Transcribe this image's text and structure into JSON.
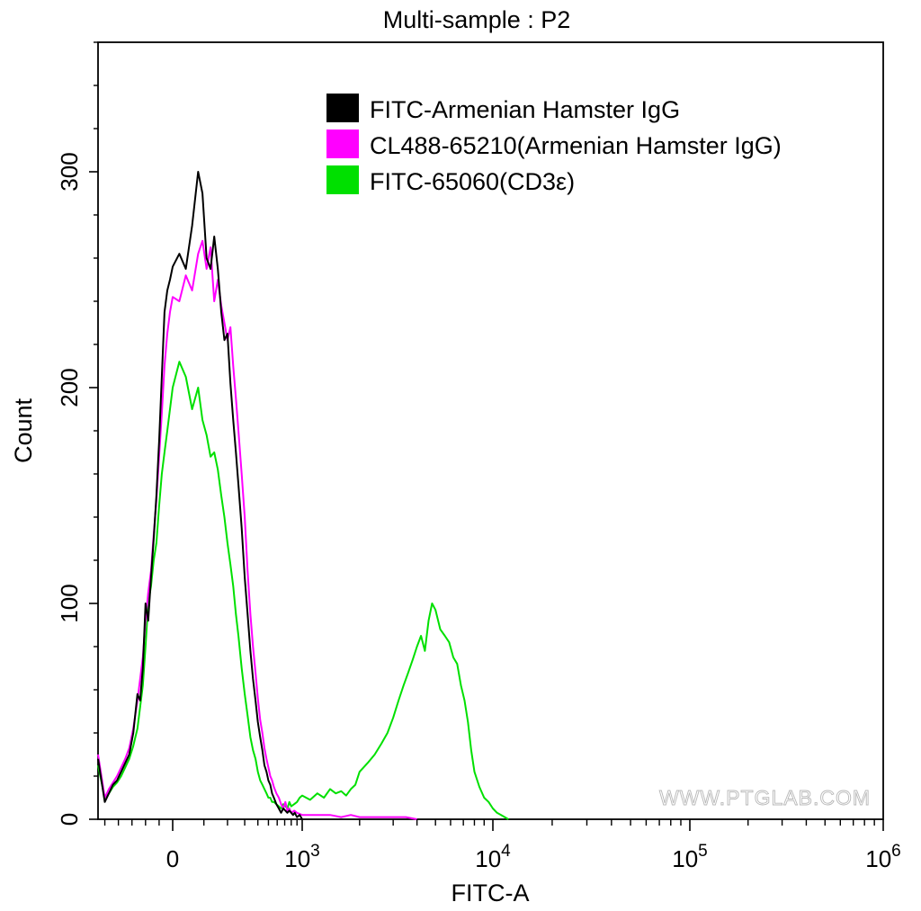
{
  "chart_data": {
    "type": "histogram",
    "title": "Multi-sample : P2",
    "xlabel": "FITC-A",
    "ylabel": "Count",
    "watermark": "WWW.PTGLAB.COM",
    "y_ticks": [
      "0",
      "100",
      "200",
      "300"
    ],
    "y_range": [
      0,
      360
    ],
    "x_ticks": [
      {
        "base": "0",
        "exp": "",
        "value": 0
      },
      {
        "base": "10",
        "exp": "3",
        "value": 1000
      },
      {
        "base": "10",
        "exp": "4",
        "value": 10000
      },
      {
        "base": "10",
        "exp": "5",
        "value": 100000
      },
      {
        "base": "10",
        "exp": "6",
        "value": 1000000
      }
    ],
    "x_scale": "biexponential",
    "legend_position": "top-right",
    "series": [
      {
        "name": "FITC-Armenian Hamster IgG",
        "color": "#000000",
        "points": [
          [
            -550,
            28
          ],
          [
            -500,
            8
          ],
          [
            -470,
            12
          ],
          [
            -440,
            16
          ],
          [
            -410,
            18
          ],
          [
            -380,
            22
          ],
          [
            -350,
            26
          ],
          [
            -320,
            30
          ],
          [
            -290,
            40
          ],
          [
            -260,
            58
          ],
          [
            -240,
            55
          ],
          [
            -220,
            70
          ],
          [
            -200,
            100
          ],
          [
            -180,
            92
          ],
          [
            -160,
            112
          ],
          [
            -140,
            130
          ],
          [
            -120,
            150
          ],
          [
            -100,
            175
          ],
          [
            -80,
            205
          ],
          [
            -60,
            235
          ],
          [
            -40,
            245
          ],
          [
            -20,
            250
          ],
          [
            0,
            256
          ],
          [
            20,
            262
          ],
          [
            40,
            255
          ],
          [
            60,
            275
          ],
          [
            80,
            300
          ],
          [
            95,
            290
          ],
          [
            110,
            260
          ],
          [
            125,
            255
          ],
          [
            140,
            270
          ],
          [
            155,
            255
          ],
          [
            170,
            235
          ],
          [
            185,
            222
          ],
          [
            200,
            225
          ],
          [
            215,
            202
          ],
          [
            230,
            185
          ],
          [
            245,
            170
          ],
          [
            260,
            155
          ],
          [
            280,
            135
          ],
          [
            300,
            112
          ],
          [
            320,
            95
          ],
          [
            340,
            78
          ],
          [
            360,
            65
          ],
          [
            380,
            55
          ],
          [
            400,
            45
          ],
          [
            420,
            38
          ],
          [
            440,
            32
          ],
          [
            460,
            25
          ],
          [
            480,
            22
          ],
          [
            500,
            18
          ],
          [
            520,
            16
          ],
          [
            540,
            12
          ],
          [
            560,
            10
          ],
          [
            590,
            7
          ],
          [
            620,
            5
          ],
          [
            650,
            3
          ],
          [
            680,
            5
          ],
          [
            710,
            4
          ],
          [
            740,
            3
          ],
          [
            770,
            4
          ],
          [
            800,
            3
          ],
          [
            830,
            2
          ],
          [
            860,
            3
          ],
          [
            900,
            1
          ],
          [
            950,
            2
          ],
          [
            1000,
            0
          ]
        ]
      },
      {
        "name": "CL488-65210(Armenian Hamster IgG)",
        "color": "#ff00ff",
        "points": [
          [
            -550,
            30
          ],
          [
            -500,
            10
          ],
          [
            -470,
            14
          ],
          [
            -440,
            17
          ],
          [
            -410,
            20
          ],
          [
            -380,
            24
          ],
          [
            -350,
            28
          ],
          [
            -320,
            33
          ],
          [
            -290,
            42
          ],
          [
            -260,
            55
          ],
          [
            -240,
            65
          ],
          [
            -220,
            75
          ],
          [
            -200,
            92
          ],
          [
            -180,
            105
          ],
          [
            -160,
            115
          ],
          [
            -140,
            132
          ],
          [
            -120,
            148
          ],
          [
            -100,
            168
          ],
          [
            -80,
            188
          ],
          [
            -60,
            210
          ],
          [
            -40,
            225
          ],
          [
            -20,
            235
          ],
          [
            0,
            242
          ],
          [
            20,
            240
          ],
          [
            40,
            252
          ],
          [
            60,
            245
          ],
          [
            80,
            262
          ],
          [
            95,
            268
          ],
          [
            110,
            255
          ],
          [
            125,
            265
          ],
          [
            140,
            240
          ],
          [
            155,
            250
          ],
          [
            170,
            238
          ],
          [
            185,
            230
          ],
          [
            200,
            222
          ],
          [
            215,
            228
          ],
          [
            230,
            210
          ],
          [
            245,
            195
          ],
          [
            260,
            180
          ],
          [
            280,
            160
          ],
          [
            300,
            140
          ],
          [
            320,
            115
          ],
          [
            340,
            95
          ],
          [
            360,
            80
          ],
          [
            380,
            68
          ],
          [
            400,
            56
          ],
          [
            420,
            46
          ],
          [
            440,
            40
          ],
          [
            460,
            33
          ],
          [
            480,
            28
          ],
          [
            500,
            24
          ],
          [
            520,
            20
          ],
          [
            540,
            18
          ],
          [
            560,
            15
          ],
          [
            590,
            12
          ],
          [
            620,
            10
          ],
          [
            650,
            7
          ],
          [
            680,
            5
          ],
          [
            710,
            8
          ],
          [
            740,
            4
          ],
          [
            770,
            5
          ],
          [
            800,
            3
          ],
          [
            850,
            4
          ],
          [
            900,
            3
          ],
          [
            1000,
            2
          ],
          [
            1200,
            2
          ],
          [
            1400,
            2
          ],
          [
            1600,
            1
          ],
          [
            1800,
            2
          ],
          [
            2000,
            1
          ],
          [
            2500,
            1
          ],
          [
            3000,
            1
          ],
          [
            3500,
            1
          ],
          [
            4000,
            0
          ]
        ]
      },
      {
        "name": "FITC-65060(CD3ε)",
        "color": "#00e000",
        "points": [
          [
            -550,
            25
          ],
          [
            -500,
            10
          ],
          [
            -470,
            12
          ],
          [
            -440,
            15
          ],
          [
            -410,
            17
          ],
          [
            -380,
            20
          ],
          [
            -350,
            24
          ],
          [
            -320,
            28
          ],
          [
            -290,
            34
          ],
          [
            -260,
            42
          ],
          [
            -240,
            52
          ],
          [
            -220,
            62
          ],
          [
            -200,
            80
          ],
          [
            -180,
            100
          ],
          [
            -160,
            108
          ],
          [
            -140,
            120
          ],
          [
            -120,
            128
          ],
          [
            -100,
            145
          ],
          [
            -80,
            160
          ],
          [
            -60,
            170
          ],
          [
            -40,
            180
          ],
          [
            -20,
            190
          ],
          [
            0,
            200
          ],
          [
            20,
            212
          ],
          [
            40,
            205
          ],
          [
            60,
            190
          ],
          [
            80,
            200
          ],
          [
            95,
            185
          ],
          [
            110,
            178
          ],
          [
            125,
            168
          ],
          [
            140,
            170
          ],
          [
            155,
            162
          ],
          [
            170,
            150
          ],
          [
            185,
            140
          ],
          [
            200,
            128
          ],
          [
            215,
            118
          ],
          [
            230,
            108
          ],
          [
            245,
            95
          ],
          [
            260,
            85
          ],
          [
            280,
            70
          ],
          [
            300,
            58
          ],
          [
            320,
            48
          ],
          [
            340,
            38
          ],
          [
            360,
            32
          ],
          [
            380,
            28
          ],
          [
            400,
            22
          ],
          [
            420,
            18
          ],
          [
            440,
            16
          ],
          [
            460,
            14
          ],
          [
            480,
            12
          ],
          [
            500,
            10
          ],
          [
            520,
            10
          ],
          [
            540,
            8
          ],
          [
            560,
            8
          ],
          [
            590,
            7
          ],
          [
            620,
            6
          ],
          [
            650,
            5
          ],
          [
            680,
            7
          ],
          [
            710,
            6
          ],
          [
            740,
            5
          ],
          [
            770,
            8
          ],
          [
            800,
            6
          ],
          [
            850,
            7
          ],
          [
            900,
            8
          ],
          [
            950,
            10
          ],
          [
            1000,
            11
          ],
          [
            1100,
            9
          ],
          [
            1200,
            12
          ],
          [
            1300,
            10
          ],
          [
            1400,
            14
          ],
          [
            1500,
            12
          ],
          [
            1600,
            13
          ],
          [
            1700,
            11
          ],
          [
            1800,
            14
          ],
          [
            1900,
            16
          ],
          [
            2000,
            22
          ],
          [
            2200,
            26
          ],
          [
            2400,
            30
          ],
          [
            2600,
            35
          ],
          [
            2800,
            40
          ],
          [
            3000,
            47
          ],
          [
            3200,
            55
          ],
          [
            3400,
            62
          ],
          [
            3600,
            68
          ],
          [
            3800,
            74
          ],
          [
            4000,
            80
          ],
          [
            4200,
            85
          ],
          [
            4400,
            78
          ],
          [
            4600,
            92
          ],
          [
            4800,
            100
          ],
          [
            5000,
            97
          ],
          [
            5300,
            88
          ],
          [
            5600,
            85
          ],
          [
            5900,
            82
          ],
          [
            6200,
            75
          ],
          [
            6500,
            72
          ],
          [
            6800,
            62
          ],
          [
            7100,
            55
          ],
          [
            7400,
            45
          ],
          [
            7700,
            32
          ],
          [
            8000,
            22
          ],
          [
            8500,
            15
          ],
          [
            9000,
            10
          ],
          [
            9500,
            8
          ],
          [
            10000,
            5
          ],
          [
            10500,
            3
          ],
          [
            11000,
            2
          ],
          [
            12000,
            0
          ]
        ]
      }
    ]
  }
}
